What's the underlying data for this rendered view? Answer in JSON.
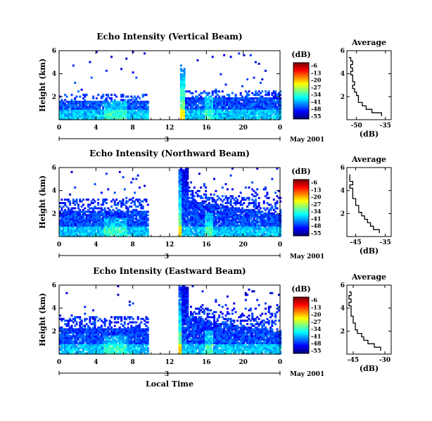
{
  "chart_data": [
    {
      "type": "heatmap",
      "title": "Echo Intensity (Vertical Beam)",
      "ylabel": "Height (km)",
      "x_ticks": [
        "0",
        "4",
        "8",
        "12",
        "16",
        "20",
        "0"
      ],
      "x_range": [
        0,
        24
      ],
      "y_ticks": [
        "6",
        "4",
        "2"
      ],
      "y_range": [
        0.0,
        6.0
      ],
      "day_marker": "3",
      "date_label": "May 2001",
      "data_gap_hours": [
        9.6,
        13.0
      ],
      "colorbar": {
        "unit": "(dB)",
        "ticks": [
          "-6",
          "-13",
          "-20",
          "-27",
          "-34",
          "-41",
          "-48",
          "-55"
        ],
        "range": [
          -55,
          -6
        ]
      },
      "profile": {
        "title": "Average",
        "xlabel": "(dB)",
        "x_ticks": [
          "-50",
          "-35"
        ],
        "x_range": [
          -55,
          -32
        ],
        "y_ticks": [
          "6",
          "4",
          "2"
        ],
        "height_km": [
          0.3,
          0.6,
          0.9,
          1.2,
          1.5,
          1.8,
          2.1,
          2.4,
          2.7,
          3.0,
          3.3,
          3.6,
          3.9,
          4.2,
          4.5,
          4.8,
          5.1,
          5.4
        ],
        "db": [
          -37,
          -42,
          -45,
          -47,
          -49,
          -49,
          -50,
          -51,
          -52,
          -51,
          -52,
          -52,
          -53,
          -52,
          -53,
          -52,
          -53,
          -54
        ]
      }
    },
    {
      "type": "heatmap",
      "title": "Echo Intensity (Northward Beam)",
      "ylabel": "Height (km)",
      "x_ticks": [
        "0",
        "4",
        "8",
        "12",
        "16",
        "20",
        "0"
      ],
      "x_range": [
        0,
        24
      ],
      "y_ticks": [
        "6",
        "4",
        "2"
      ],
      "y_range": [
        0.0,
        6.0
      ],
      "day_marker": "3",
      "date_label": "May 2001",
      "data_gap_hours": [
        9.6,
        12.8
      ],
      "colorbar": {
        "unit": "(dB)",
        "ticks": [
          "-6",
          "-13",
          "-20",
          "-27",
          "-34",
          "-41",
          "-48",
          "-55"
        ],
        "range": [
          -55,
          -6
        ]
      },
      "profile": {
        "title": "Average",
        "xlabel": "(dB)",
        "x_ticks": [
          "-45",
          "-35"
        ],
        "x_range": [
          -48,
          -33
        ],
        "y_ticks": [
          "6",
          "4",
          "2"
        ],
        "height_km": [
          0.3,
          0.6,
          0.9,
          1.2,
          1.5,
          1.8,
          2.1,
          2.4,
          2.7,
          3.0,
          3.3,
          3.6,
          3.9,
          4.2,
          4.5,
          4.8,
          5.1,
          5.4
        ],
        "db": [
          -37,
          -39,
          -40,
          -41,
          -42,
          -43,
          -44,
          -44,
          -45,
          -45,
          -46,
          -46,
          -46,
          -47,
          -46,
          -47,
          -47,
          -47
        ]
      }
    },
    {
      "type": "heatmap",
      "title": "Echo Intensity (Eastward Beam)",
      "ylabel": "Height (km)",
      "x_ticks": [
        "0",
        "4",
        "8",
        "12",
        "16",
        "20",
        "0"
      ],
      "x_range": [
        0,
        24
      ],
      "y_ticks": [
        "6",
        "4",
        "2"
      ],
      "y_range": [
        0.0,
        6.0
      ],
      "day_marker": "3",
      "date_label": "May 2001",
      "xlabel": "Local Time",
      "data_gap_hours": [
        9.6,
        12.8
      ],
      "colorbar": {
        "unit": "(dB)",
        "ticks": [
          "-6",
          "-13",
          "-20",
          "-27",
          "-34",
          "-41",
          "-48",
          "-55"
        ],
        "range": [
          -55,
          -6
        ]
      },
      "profile": {
        "title": "Average",
        "xlabel": "(dB)",
        "x_ticks": [
          "-45",
          "-30"
        ],
        "x_range": [
          -48,
          -27
        ],
        "y_ticks": [
          "6",
          "4",
          "2"
        ],
        "height_km": [
          0.3,
          0.6,
          0.9,
          1.2,
          1.5,
          1.8,
          2.1,
          2.4,
          2.7,
          3.0,
          3.3,
          3.6,
          3.9,
          4.2,
          4.5,
          4.8,
          5.1,
          5.4
        ],
        "db": [
          -32,
          -35,
          -38,
          -40,
          -41,
          -43,
          -44,
          -44,
          -45,
          -45,
          -46,
          -46,
          -46,
          -47,
          -46,
          -47,
          -46,
          -47
        ]
      }
    }
  ]
}
